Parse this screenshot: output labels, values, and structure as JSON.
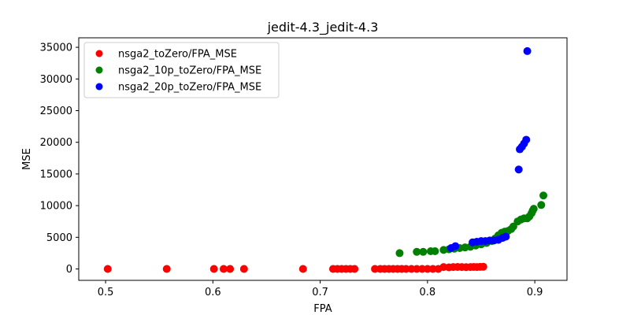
{
  "chart_data": {
    "type": "scatter",
    "title": "jedit-4.3_jedit-4.3",
    "xlabel": "FPA",
    "ylabel": "MSE",
    "xlim": [
      0.475,
      0.93
    ],
    "ylim": [
      -1800,
      36500
    ],
    "xticks": [
      0.5,
      0.6,
      0.7,
      0.8,
      0.9
    ],
    "xtick_labels": [
      "0.5",
      "0.6",
      "0.7",
      "0.8",
      "0.9"
    ],
    "yticks": [
      0,
      5000,
      10000,
      15000,
      20000,
      25000,
      30000,
      35000
    ],
    "ytick_labels": [
      "0",
      "5000",
      "10000",
      "15000",
      "20000",
      "25000",
      "30000",
      "35000"
    ],
    "grid": false,
    "legend_position": "top-left",
    "series": [
      {
        "name": "nsga2_toZero/FPA_MSE",
        "color": "#ff0000",
        "x": [
          0.502,
          0.557,
          0.601,
          0.61,
          0.616,
          0.629,
          0.684,
          0.712,
          0.716,
          0.72,
          0.724,
          0.728,
          0.732,
          0.751,
          0.756,
          0.76,
          0.764,
          0.768,
          0.772,
          0.776,
          0.78,
          0.785,
          0.79,
          0.795,
          0.8,
          0.805,
          0.81,
          0.815,
          0.82,
          0.824,
          0.828,
          0.832,
          0.836,
          0.84,
          0.843,
          0.846,
          0.849,
          0.852
        ],
        "y": [
          0,
          0,
          0,
          0,
          0,
          0,
          0,
          0,
          0,
          0,
          0,
          0,
          0,
          0,
          0,
          0,
          0,
          0,
          0,
          0,
          0,
          0,
          0,
          0,
          0,
          0,
          0,
          300,
          250,
          300,
          320,
          300,
          280,
          300,
          320,
          300,
          330,
          350
        ]
      },
      {
        "name": "nsga2_10p_toZero/FPA_MSE",
        "color": "#008000",
        "x": [
          0.774,
          0.79,
          0.796,
          0.803,
          0.807,
          0.815,
          0.82,
          0.825,
          0.83,
          0.835,
          0.84,
          0.845,
          0.85,
          0.855,
          0.86,
          0.863,
          0.866,
          0.869,
          0.872,
          0.875,
          0.878,
          0.88,
          0.884,
          0.887,
          0.89,
          0.893,
          0.895,
          0.897,
          0.898,
          0.899,
          0.906,
          0.908
        ],
        "y": [
          2500,
          2700,
          2700,
          2800,
          2800,
          3000,
          3100,
          3200,
          3300,
          3400,
          3500,
          3700,
          3900,
          4100,
          4400,
          4800,
          5300,
          5700,
          5900,
          6000,
          6300,
          6700,
          7500,
          7800,
          8000,
          8000,
          8300,
          8800,
          9200,
          9500,
          10100,
          11600
        ]
      },
      {
        "name": "nsga2_20p_toZero/FPA_MSE",
        "color": "#0000ff",
        "x": [
          0.822,
          0.826,
          0.842,
          0.846,
          0.85,
          0.854,
          0.858,
          0.862,
          0.866,
          0.87,
          0.873,
          0.885,
          0.886,
          0.888,
          0.89,
          0.892,
          0.893
        ],
        "y": [
          3300,
          3600,
          4200,
          4300,
          4400,
          4400,
          4500,
          4500,
          4600,
          4900,
          5100,
          15700,
          18900,
          19300,
          19800,
          20400,
          34400
        ]
      }
    ]
  }
}
